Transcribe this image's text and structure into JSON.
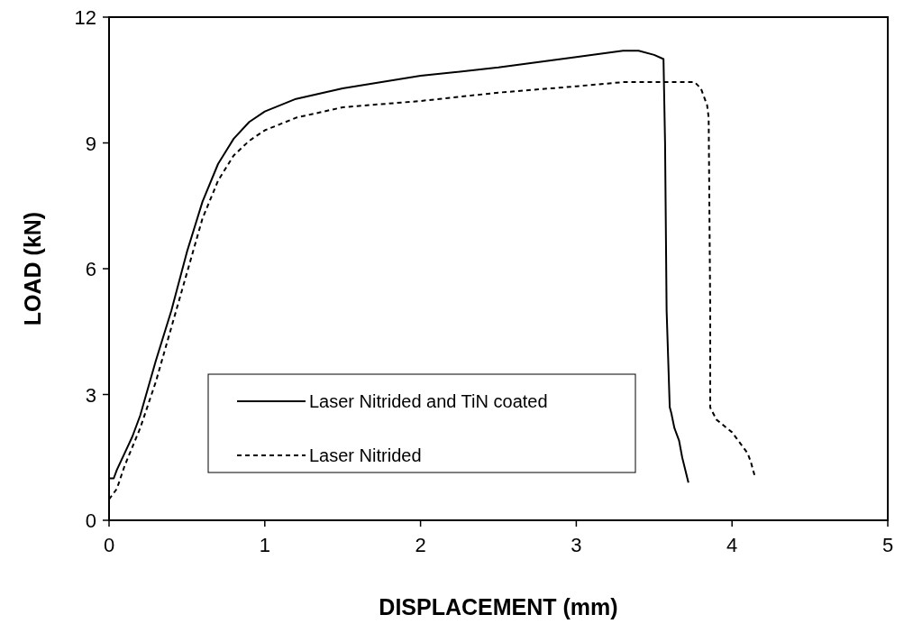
{
  "chart_data": {
    "type": "line",
    "xlabel": "DISPLACEMENT (mm)",
    "ylabel": "LOAD (kN)",
    "xlim": [
      0,
      5
    ],
    "xticks": [
      0,
      1,
      2,
      3,
      4,
      5
    ],
    "ylim": [
      0,
      12
    ],
    "yticks": [
      0,
      3,
      6,
      9,
      12
    ],
    "grid": false,
    "legend": "bottom left",
    "marker": "none",
    "series": [
      {
        "name": "Laser Nitrided and TiN coated",
        "color": "#000000",
        "line_style": "solid",
        "x": [
          0,
          0.03,
          0.05,
          0.1,
          0.15,
          0.2,
          0.3,
          0.4,
          0.5,
          0.6,
          0.7,
          0.8,
          0.9,
          1.0,
          1.2,
          1.5,
          2,
          2.5,
          3,
          3.3,
          3.4,
          3.5,
          3.56,
          3.57,
          3.58,
          3.6,
          3.61,
          3.63,
          3.66,
          3.68,
          3.7,
          3.72
        ],
        "values": [
          1.0,
          1.0,
          1.2,
          1.6,
          2.0,
          2.5,
          3.8,
          5.0,
          6.4,
          7.6,
          8.5,
          9.1,
          9.5,
          9.75,
          10.05,
          10.3,
          10.6,
          10.8,
          11.05,
          11.2,
          11.2,
          11.1,
          11.0,
          9.0,
          5.0,
          2.7,
          2.56,
          2.2,
          1.9,
          1.5,
          1.2,
          0.9
        ]
      },
      {
        "name": "Laser Nitrided",
        "color": "#000000",
        "line_style": "dashed",
        "x": [
          0,
          0.05,
          0.1,
          0.2,
          0.3,
          0.4,
          0.5,
          0.6,
          0.7,
          0.8,
          0.9,
          1.0,
          1.2,
          1.5,
          2,
          2.5,
          3,
          3.3,
          3.76,
          3.8,
          3.84,
          3.85,
          3.86,
          3.86,
          3.9,
          4.0,
          4.1,
          4.12,
          4.15
        ],
        "values": [
          0.5,
          0.75,
          1.3,
          2.2,
          3.3,
          4.6,
          5.9,
          7.2,
          8.1,
          8.7,
          9.05,
          9.3,
          9.6,
          9.85,
          10.0,
          10.2,
          10.35,
          10.45,
          10.45,
          10.3,
          9.9,
          9.6,
          5.0,
          2.69,
          2.4,
          2.1,
          1.6,
          1.4,
          1.0
        ]
      }
    ]
  }
}
